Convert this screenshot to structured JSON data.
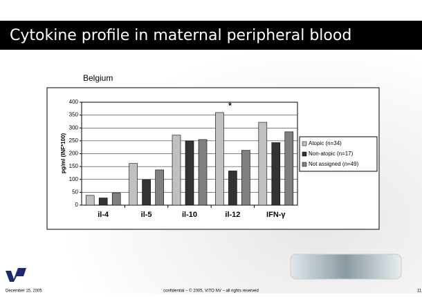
{
  "slide": {
    "title": "Cytokine profile in maternal peripheral blood",
    "footer_date": "December 15, 2005",
    "footer_text": "confidential – © 2005, VITO NV – all rights reserved",
    "page_number": "11"
  },
  "chart_data": {
    "type": "bar",
    "title": "Belgium",
    "y_label": "pg/ml (INF*100)",
    "categories": [
      "il-4",
      "il-5",
      "il-10",
      "il-12",
      "IFN-γ"
    ],
    "series": [
      {
        "name": "Atopic (n=34)",
        "color": "#c0c0c0",
        "values": [
          38,
          162,
          272,
          360,
          322
        ]
      },
      {
        "name": "Non-atopic (n=17)",
        "color": "#333333",
        "values": [
          28,
          100,
          250,
          133,
          243
        ]
      },
      {
        "name": "Not assigned (n=49)",
        "color": "#808080",
        "values": [
          47,
          137,
          255,
          213,
          285
        ]
      }
    ],
    "annotations": [
      {
        "text": "*"
      }
    ],
    "ylim": [
      0,
      400
    ],
    "yticks": [
      0,
      50,
      100,
      150,
      200,
      250,
      300,
      350,
      400
    ],
    "grid": true,
    "legend": "right"
  }
}
